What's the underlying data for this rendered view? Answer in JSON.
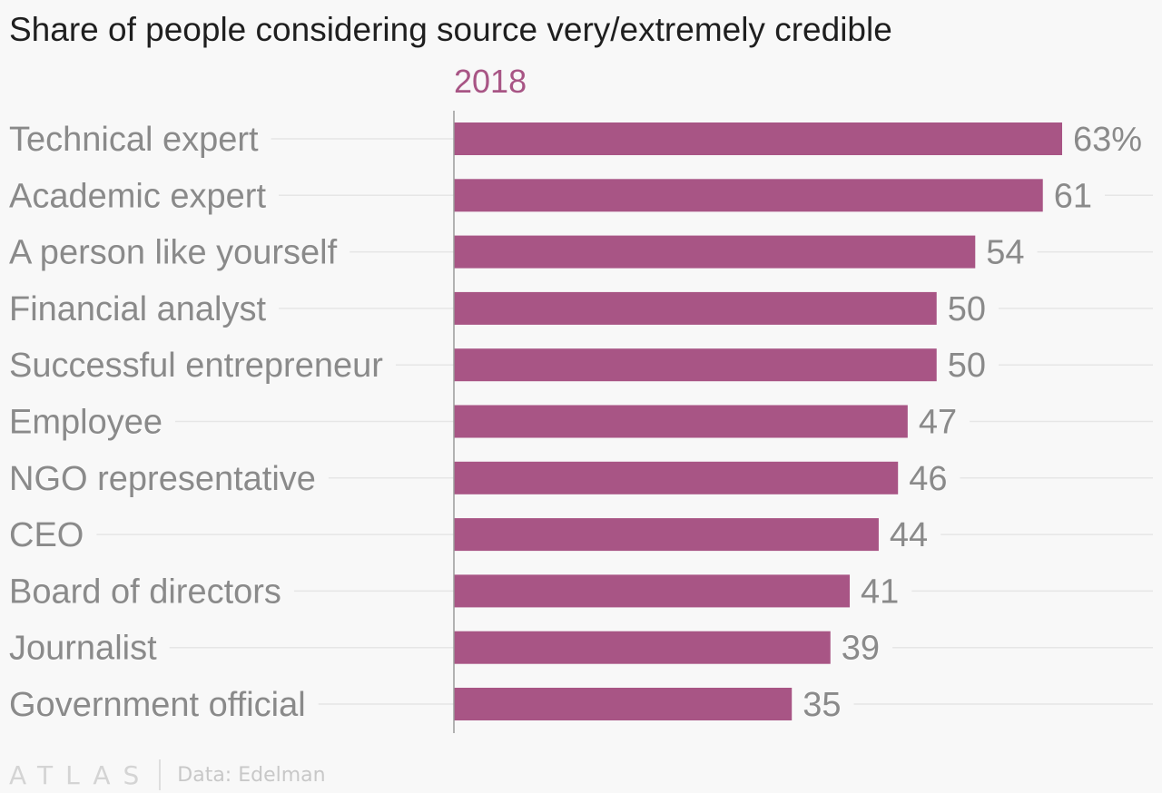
{
  "title": "Share of people considering source very/extremely credible",
  "footer": {
    "logo": "ATLAS",
    "source": "Data: Edelman"
  },
  "colors": {
    "bar": "#a85585",
    "series_label": "#a85585",
    "category_label": "#8a8a8a",
    "value_label": "#8a8a8a",
    "gridline": "#e6e6e6",
    "axis": "#9a9a9a"
  },
  "chart_data": {
    "type": "bar",
    "orientation": "horizontal",
    "title": "Share of people considering source very/extremely credible",
    "categories": [
      "Technical expert",
      "Academic expert",
      "A person like yourself",
      "Financial analyst",
      "Successful entrepreneur",
      "Employee",
      "NGO representative",
      "CEO",
      "Board of directors",
      "Journalist",
      "Government official"
    ],
    "series": [
      {
        "name": "2018",
        "values": [
          63,
          61,
          54,
          50,
          50,
          47,
          46,
          44,
          41,
          39,
          35
        ]
      }
    ],
    "value_labels": [
      "63%",
      "61",
      "54",
      "50",
      "50",
      "47",
      "46",
      "44",
      "41",
      "39",
      "35"
    ],
    "unit": "%",
    "xlim": [
      0,
      63
    ],
    "grid": true,
    "legend": "none"
  }
}
